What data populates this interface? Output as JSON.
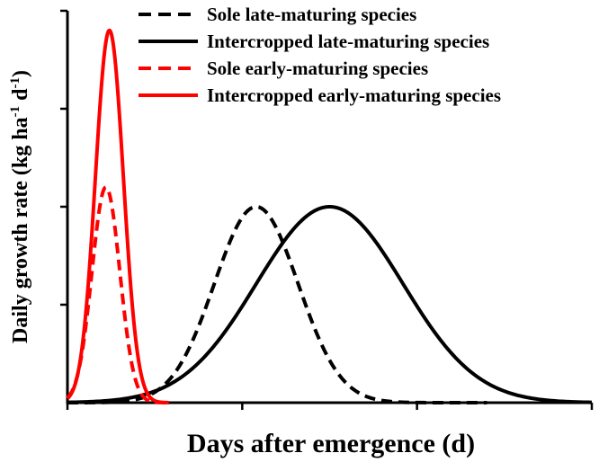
{
  "chart_data": {
    "type": "line",
    "xlabel": "Days after emergence (d)",
    "ylabel": {
      "main": "Daily growth rate (kg ha",
      "sup1": "-1",
      "mid": " d",
      "sup2": "-1",
      "end": ")"
    },
    "x_ticks": 4,
    "y_ticks": 5,
    "xlim": [
      0,
      300
    ],
    "ylim": [
      0,
      100
    ],
    "grid": false,
    "legend_position": "top-right",
    "series": [
      {
        "name": "Sole late-maturing  species",
        "color": "#000000",
        "dash": "dashed",
        "peak_x": 108,
        "peak_y": 50,
        "sigma": 24,
        "x_start": 0,
        "x_end": 240
      },
      {
        "name": "Intercropped late-maturing  species",
        "color": "#000000",
        "dash": "solid",
        "peak_x": 150,
        "peak_y": 50,
        "sigma": 42,
        "x_start": 0,
        "x_end": 300
      },
      {
        "name": "Sole early-maturing species",
        "color": "#ff0000",
        "dash": "dashed",
        "peak_x": 22,
        "peak_y": 55,
        "sigma": 8,
        "x_start": 0,
        "x_end": 58
      },
      {
        "name": "Intercropped early-maturing species",
        "color": "#ff0000",
        "dash": "solid",
        "peak_x": 24,
        "peak_y": 95,
        "sigma": 8,
        "x_start": 0,
        "x_end": 58
      }
    ]
  }
}
